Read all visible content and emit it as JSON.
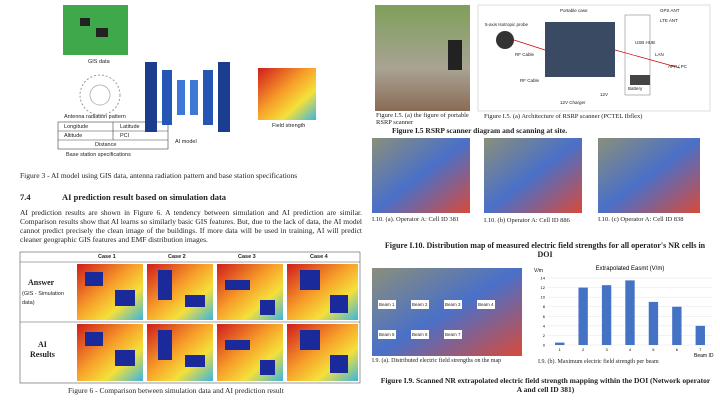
{
  "left": {
    "figure3": {
      "gis_label": "GIS data",
      "antenna_label": "Antenna radiation pattern",
      "table": [
        [
          "Longitude",
          "Latitude"
        ],
        [
          "Altitude",
          "PCI"
        ],
        [
          "Distance"
        ]
      ],
      "table_caption": "Base station specifications",
      "model_label": "AI model",
      "field_label": "Field strength",
      "caption": "Figure 3 - AI model using GIS data, antenna radiation pattern and base station specifications"
    },
    "section": {
      "number": "7.4",
      "title": "AI prediction result based on simulation data",
      "paragraph": "AI prediction results are shown in Figure 6. A tendency between simulation and AI prediction are similar. Comparison results show that AI learns so similarly basic GIS features. But, due to the lack of data, the AI model cannot predict precisely the clean image of the buildings. If more data will be used in training, AI will predict cleaner geographic GIS features and EMF distribution images."
    },
    "figure6": {
      "cases": [
        "Case 1",
        "Case 2",
        "Case 3",
        "Case 4"
      ],
      "rows": [
        {
          "label": "Answer",
          "sublabel": "(GIS - Simulation data)"
        },
        {
          "label": "AI",
          "sublabel": "Results"
        }
      ],
      "caption": "Figure 6 - Comparison between simulation data and AI prediction result"
    }
  },
  "right": {
    "figure_i5": {
      "diagram_labels": [
        "Portable case",
        "5-axis Isotropic probe",
        "GPS ANT",
        "LTE ANT",
        "RF Cable",
        "USB HUB",
        "RF Cable",
        "LAN",
        "APP / PC",
        "Battery",
        "12V",
        "12V Charger"
      ],
      "caption_a": "Figure I.5. (a) the figure of portable RSRP scanner",
      "caption_b": "Figure I.5. (a) Architecture of RSRP scanner (PCTEL Ibflex)",
      "title": "Figure I.5 RSRP scanner diagram and scanning at site."
    },
    "figure_i10": {
      "captions": [
        "I.10. (a). Operator A: Cell ID 381",
        "I.10. (b) Operator A: Cell ID 886",
        "I.10. (c) Operator A: Cell ID 838"
      ],
      "title": "Figure I.10. Distribution map of measured electric field strengths for all operator's NR cells in DOI"
    },
    "figure_i9": {
      "beam_labels": [
        "Beam 1",
        "Beam 2",
        "Beam 3",
        "Beam 4",
        "Beam 5",
        "Beam 6",
        "Beam 7"
      ],
      "chart": {
        "title": "Extrapolated Easmt (V/m)",
        "y_label": "V/m",
        "x_label": "Beam ID",
        "categories": [
          "1",
          "2",
          "3",
          "4",
          "5",
          "6",
          "7"
        ],
        "values": [
          0.5,
          12,
          12.5,
          13.5,
          9,
          8,
          4
        ],
        "ylim": [
          0,
          14
        ],
        "yticks": [
          0,
          2,
          4,
          6,
          8,
          10,
          12,
          14
        ],
        "color": "#4472c4"
      },
      "caption_a": "I.9. (a). Distributed electric field strengths on the map",
      "caption_b": "I.9. (b). Maximum electric field strength per beam",
      "title": "Figure I.9. Scanned NR extrapolated electric field strength mapping within the DOI (Network operator A and cell ID 381)"
    }
  }
}
